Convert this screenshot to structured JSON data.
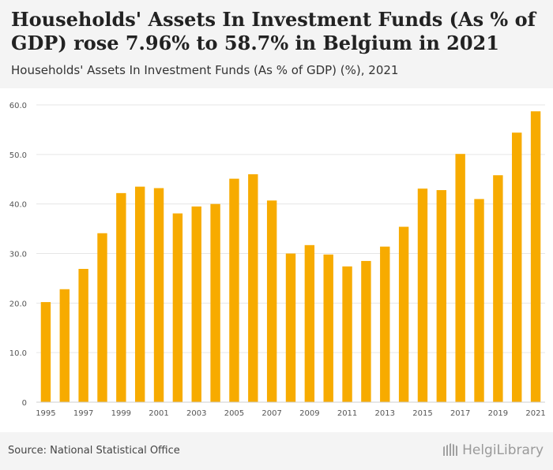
{
  "header": {
    "title": "Households' Assets In Investment Funds (As % of GDP) rose 7.96% to 58.7% in Belgium in 2021",
    "subtitle": "Households' Assets In Investment Funds (As % of GDP) (%), 2021"
  },
  "footer": {
    "source": "Source: National Statistical Office",
    "brand": "HelgiLibrary"
  },
  "colors": {
    "bar": "#f7ab00",
    "grid": "#e6e6e6",
    "axis_text": "#555555"
  },
  "chart_data": {
    "type": "bar",
    "title": "Households' Assets In Investment Funds (As % of GDP) (%), 2021",
    "xlabel": "",
    "ylabel": "",
    "ylim": [
      0,
      60
    ],
    "yticks": [
      0,
      10,
      20,
      30,
      40,
      50,
      60
    ],
    "ytick_labels": [
      "0",
      "10.0",
      "20.0",
      "30.0",
      "40.0",
      "50.0",
      "60.0"
    ],
    "grid": true,
    "categories": [
      "1995",
      "1996",
      "1997",
      "1998",
      "1999",
      "2000",
      "2001",
      "2002",
      "2003",
      "2004",
      "2005",
      "2006",
      "2007",
      "2008",
      "2009",
      "2010",
      "2011",
      "2012",
      "2013",
      "2014",
      "2015",
      "2016",
      "2017",
      "2018",
      "2019",
      "2020",
      "2021"
    ],
    "xtick_labels": [
      "1995",
      "",
      "1997",
      "",
      "1999",
      "",
      "2001",
      "",
      "2003",
      "",
      "2005",
      "",
      "2007",
      "",
      "2009",
      "",
      "2011",
      "",
      "2013",
      "",
      "2015",
      "",
      "2017",
      "",
      "2019",
      "",
      "2021"
    ],
    "values": [
      20.2,
      22.8,
      26.9,
      34.1,
      42.2,
      43.5,
      43.2,
      38.1,
      39.5,
      40.0,
      45.1,
      46.0,
      40.7,
      30.0,
      31.7,
      29.8,
      27.4,
      28.5,
      31.4,
      35.4,
      43.1,
      42.8,
      50.1,
      41.0,
      45.8,
      54.4,
      58.7
    ]
  }
}
